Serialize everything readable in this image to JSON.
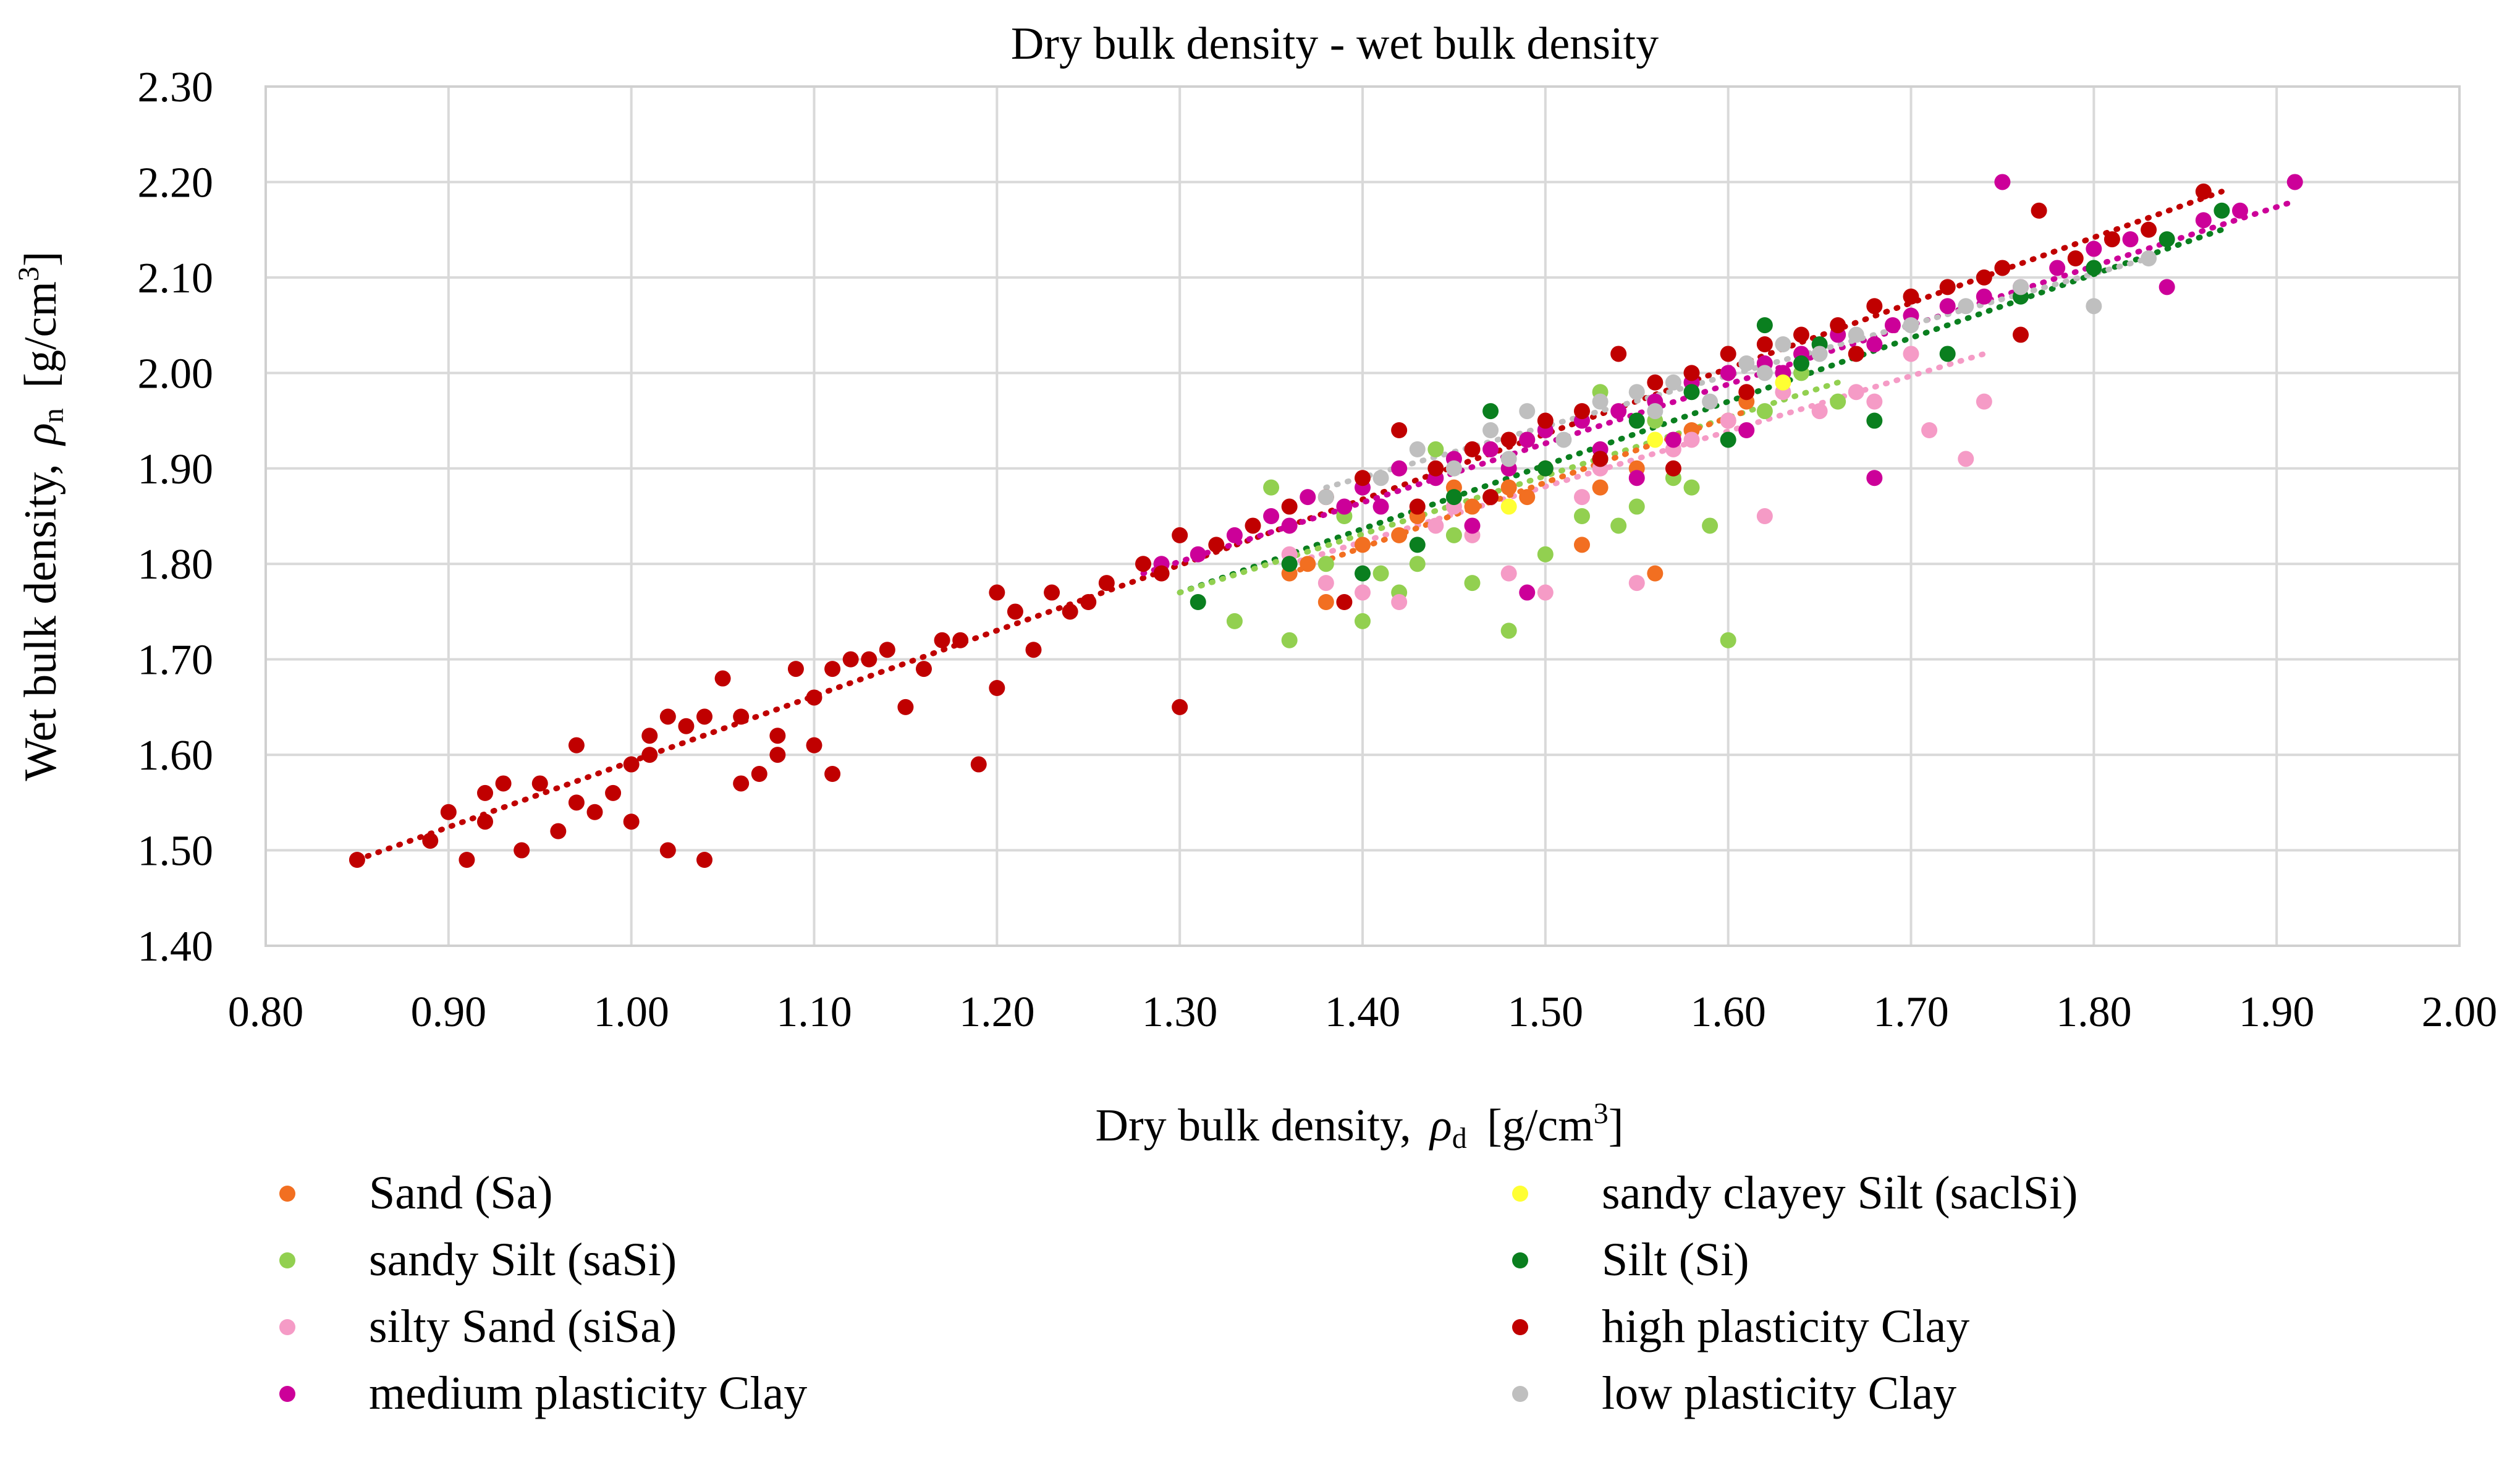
{
  "chart_data": {
    "type": "scatter",
    "title": "Dry bulk density - wet bulk density",
    "xlabel_prefix": "Dry bulk density,",
    "xlabel_symbol": "ρ",
    "xlabel_subscript": "d",
    "xlabel_unit_open": "[g/cm",
    "xlabel_unit_sup": "3",
    "xlabel_unit_close": "]",
    "ylabel_prefix": "Wet bulk density,",
    "ylabel_symbol": "ρ",
    "ylabel_subscript": "n",
    "ylabel_unit_open": "[g/cm",
    "ylabel_unit_sup": "3",
    "ylabel_unit_close": "]",
    "xlim": [
      0.8,
      2.0
    ],
    "ylim": [
      1.4,
      2.3
    ],
    "xticks": [
      "0.80",
      "0.90",
      "1.00",
      "1.10",
      "1.20",
      "1.30",
      "1.40",
      "1.50",
      "1.60",
      "1.70",
      "1.80",
      "1.90",
      "2.00"
    ],
    "yticks": [
      "1.40",
      "1.50",
      "1.60",
      "1.70",
      "1.80",
      "1.90",
      "2.00",
      "2.10",
      "2.20",
      "2.30"
    ],
    "grid": true,
    "legend_position": "bottom",
    "series": [
      {
        "name": "Sand (Sa)",
        "color": "#f26f21",
        "points": [
          [
            1.36,
            1.79
          ],
          [
            1.38,
            1.76
          ],
          [
            1.4,
            1.82
          ],
          [
            1.43,
            1.85
          ],
          [
            1.45,
            1.88
          ],
          [
            1.48,
            1.88
          ],
          [
            1.49,
            1.87
          ],
          [
            1.5,
            1.9
          ],
          [
            1.52,
            1.82
          ],
          [
            1.55,
            1.9
          ],
          [
            1.56,
            1.79
          ],
          [
            1.58,
            1.94
          ],
          [
            1.6,
            1.95
          ],
          [
            1.37,
            1.8
          ],
          [
            1.42,
            1.83
          ],
          [
            1.46,
            1.86
          ],
          [
            1.53,
            1.88
          ],
          [
            1.61,
            1.97
          ]
        ]
      },
      {
        "name": "sandy Silt (saSi)",
        "color": "#92d050",
        "points": [
          [
            1.33,
            1.74
          ],
          [
            1.36,
            1.72
          ],
          [
            1.38,
            1.8
          ],
          [
            1.4,
            1.74
          ],
          [
            1.42,
            1.77
          ],
          [
            1.43,
            1.8
          ],
          [
            1.45,
            1.83
          ],
          [
            1.46,
            1.78
          ],
          [
            1.47,
            1.87
          ],
          [
            1.48,
            1.73
          ],
          [
            1.5,
            1.81
          ],
          [
            1.52,
            1.85
          ],
          [
            1.54,
            1.84
          ],
          [
            1.55,
            1.86
          ],
          [
            1.56,
            1.95
          ],
          [
            1.57,
            1.89
          ],
          [
            1.59,
            1.84
          ],
          [
            1.6,
            1.72
          ],
          [
            1.62,
            1.96
          ],
          [
            1.64,
            2.0
          ],
          [
            1.66,
            1.97
          ],
          [
            1.44,
            1.92
          ],
          [
            1.49,
            1.93
          ],
          [
            1.53,
            1.98
          ],
          [
            1.58,
            1.88
          ],
          [
            1.41,
            1.79
          ],
          [
            1.35,
            1.88
          ],
          [
            1.39,
            1.85
          ]
        ]
      },
      {
        "name": "silty Sand (siSa)",
        "color": "#f59bc6",
        "points": [
          [
            1.36,
            1.81
          ],
          [
            1.38,
            1.78
          ],
          [
            1.4,
            1.77
          ],
          [
            1.42,
            1.76
          ],
          [
            1.44,
            1.84
          ],
          [
            1.46,
            1.83
          ],
          [
            1.48,
            1.79
          ],
          [
            1.5,
            1.77
          ],
          [
            1.52,
            1.87
          ],
          [
            1.55,
            1.78
          ],
          [
            1.57,
            1.92
          ],
          [
            1.62,
            1.85
          ],
          [
            1.65,
            1.96
          ],
          [
            1.67,
            1.98
          ],
          [
            1.68,
            1.97
          ],
          [
            1.71,
            1.94
          ],
          [
            1.73,
            1.91
          ],
          [
            1.74,
            1.97
          ],
          [
            1.7,
            2.02
          ],
          [
            1.6,
            1.95
          ],
          [
            1.45,
            1.86
          ],
          [
            1.53,
            1.9
          ],
          [
            1.58,
            1.93
          ],
          [
            1.63,
            1.98
          ]
        ]
      },
      {
        "name": "medium plasticity Clay",
        "color": "#cc0099",
        "points": [
          [
            1.29,
            1.8
          ],
          [
            1.31,
            1.81
          ],
          [
            1.33,
            1.83
          ],
          [
            1.35,
            1.85
          ],
          [
            1.37,
            1.87
          ],
          [
            1.39,
            1.86
          ],
          [
            1.4,
            1.88
          ],
          [
            1.42,
            1.9
          ],
          [
            1.44,
            1.89
          ],
          [
            1.45,
            1.91
          ],
          [
            1.47,
            1.92
          ],
          [
            1.49,
            1.93
          ],
          [
            1.5,
            1.94
          ],
          [
            1.52,
            1.95
          ],
          [
            1.54,
            1.96
          ],
          [
            1.56,
            1.97
          ],
          [
            1.58,
            1.99
          ],
          [
            1.6,
            2.0
          ],
          [
            1.62,
            2.01
          ],
          [
            1.64,
            2.02
          ],
          [
            1.66,
            2.04
          ],
          [
            1.68,
            2.03
          ],
          [
            1.7,
            2.06
          ],
          [
            1.72,
            2.07
          ],
          [
            1.74,
            2.08
          ],
          [
            1.75,
            2.2
          ],
          [
            1.78,
            2.11
          ],
          [
            1.8,
            2.13
          ],
          [
            1.82,
            2.14
          ],
          [
            1.84,
            2.09
          ],
          [
            1.86,
            2.16
          ],
          [
            1.88,
            2.17
          ],
          [
            1.91,
            2.2
          ],
          [
            1.68,
            1.89
          ],
          [
            1.49,
            1.77
          ],
          [
            1.55,
            1.89
          ],
          [
            1.61,
            1.94
          ],
          [
            1.46,
            1.84
          ],
          [
            1.41,
            1.86
          ],
          [
            1.57,
            1.93
          ],
          [
            1.53,
            1.92
          ],
          [
            1.36,
            1.84
          ],
          [
            1.48,
            1.9
          ],
          [
            1.63,
            2.0
          ],
          [
            1.69,
            2.05
          ],
          [
            1.76,
            2.09
          ]
        ]
      },
      {
        "name": "sandy clayey Silt (saclSi)",
        "color": "#ffff33",
        "points": [
          [
            1.48,
            1.86
          ],
          [
            1.56,
            1.93
          ],
          [
            1.63,
            1.99
          ]
        ]
      },
      {
        "name": "Silt (Si)",
        "color": "#0a7f1f",
        "points": [
          [
            1.31,
            1.76
          ],
          [
            1.36,
            1.8
          ],
          [
            1.4,
            1.79
          ],
          [
            1.43,
            1.82
          ],
          [
            1.45,
            1.87
          ],
          [
            1.47,
            1.96
          ],
          [
            1.5,
            1.9
          ],
          [
            1.53,
            1.91
          ],
          [
            1.55,
            1.95
          ],
          [
            1.58,
            1.98
          ],
          [
            1.6,
            1.93
          ],
          [
            1.62,
            2.05
          ],
          [
            1.65,
            2.03
          ],
          [
            1.68,
            1.95
          ],
          [
            1.72,
            2.02
          ],
          [
            1.76,
            2.08
          ],
          [
            1.8,
            2.11
          ],
          [
            1.84,
            2.14
          ],
          [
            1.87,
            2.17
          ],
          [
            1.64,
            2.01
          ]
        ]
      },
      {
        "name": "high plasticity Clay",
        "color": "#c00000",
        "points": [
          [
            0.85,
            1.49
          ],
          [
            0.89,
            1.51
          ],
          [
            0.9,
            1.54
          ],
          [
            0.91,
            1.49
          ],
          [
            0.92,
            1.56
          ],
          [
            0.92,
            1.53
          ],
          [
            0.93,
            1.57
          ],
          [
            0.94,
            1.5
          ],
          [
            0.95,
            1.57
          ],
          [
            0.96,
            1.52
          ],
          [
            0.97,
            1.55
          ],
          [
            0.97,
            1.61
          ],
          [
            0.98,
            1.54
          ],
          [
            0.99,
            1.56
          ],
          [
            1.0,
            1.53
          ],
          [
            1.0,
            1.59
          ],
          [
            1.01,
            1.62
          ],
          [
            1.01,
            1.6
          ],
          [
            1.02,
            1.64
          ],
          [
            1.02,
            1.5
          ],
          [
            1.03,
            1.63
          ],
          [
            1.04,
            1.49
          ],
          [
            1.04,
            1.64
          ],
          [
            1.05,
            1.68
          ],
          [
            1.06,
            1.64
          ],
          [
            1.06,
            1.57
          ],
          [
            1.07,
            1.58
          ],
          [
            1.08,
            1.62
          ],
          [
            1.08,
            1.6
          ],
          [
            1.09,
            1.69
          ],
          [
            1.1,
            1.66
          ],
          [
            1.1,
            1.61
          ],
          [
            1.11,
            1.58
          ],
          [
            1.11,
            1.69
          ],
          [
            1.12,
            1.7
          ],
          [
            1.13,
            1.7
          ],
          [
            1.14,
            1.71
          ],
          [
            1.15,
            1.65
          ],
          [
            1.16,
            1.69
          ],
          [
            1.17,
            1.72
          ],
          [
            1.18,
            1.72
          ],
          [
            1.19,
            1.59
          ],
          [
            1.2,
            1.67
          ],
          [
            1.2,
            1.77
          ],
          [
            1.21,
            1.75
          ],
          [
            1.22,
            1.71
          ],
          [
            1.23,
            1.77
          ],
          [
            1.24,
            1.75
          ],
          [
            1.25,
            1.76
          ],
          [
            1.26,
            1.78
          ],
          [
            1.28,
            1.8
          ],
          [
            1.29,
            1.79
          ],
          [
            1.3,
            1.83
          ],
          [
            1.3,
            1.65
          ],
          [
            1.32,
            1.82
          ],
          [
            1.34,
            1.84
          ],
          [
            1.36,
            1.86
          ],
          [
            1.38,
            1.87
          ],
          [
            1.39,
            1.76
          ],
          [
            1.4,
            1.89
          ],
          [
            1.42,
            1.94
          ],
          [
            1.44,
            1.9
          ],
          [
            1.46,
            1.92
          ],
          [
            1.48,
            1.93
          ],
          [
            1.5,
            1.95
          ],
          [
            1.52,
            1.96
          ],
          [
            1.54,
            2.02
          ],
          [
            1.56,
            1.99
          ],
          [
            1.58,
            2.0
          ],
          [
            1.6,
            2.02
          ],
          [
            1.62,
            2.03
          ],
          [
            1.64,
            2.04
          ],
          [
            1.66,
            2.05
          ],
          [
            1.68,
            2.07
          ],
          [
            1.7,
            2.08
          ],
          [
            1.72,
            2.09
          ],
          [
            1.74,
            2.1
          ],
          [
            1.76,
            2.04
          ],
          [
            1.77,
            2.17
          ],
          [
            1.79,
            2.12
          ],
          [
            1.81,
            2.14
          ],
          [
            1.83,
            2.15
          ],
          [
            1.86,
            2.19
          ],
          [
            1.53,
            1.91
          ],
          [
            1.57,
            1.9
          ],
          [
            1.47,
            1.87
          ],
          [
            1.43,
            1.86
          ],
          [
            1.61,
            1.98
          ],
          [
            1.67,
            2.02
          ],
          [
            1.75,
            2.11
          ]
        ]
      },
      {
        "name": "low plasticity Clay",
        "color": "#bfbfbf",
        "points": [
          [
            1.38,
            1.87
          ],
          [
            1.41,
            1.89
          ],
          [
            1.43,
            1.92
          ],
          [
            1.45,
            1.9
          ],
          [
            1.47,
            1.94
          ],
          [
            1.49,
            1.96
          ],
          [
            1.51,
            1.93
          ],
          [
            1.53,
            1.97
          ],
          [
            1.55,
            1.98
          ],
          [
            1.57,
            1.99
          ],
          [
            1.59,
            1.97
          ],
          [
            1.61,
            2.01
          ],
          [
            1.63,
            2.03
          ],
          [
            1.65,
            2.02
          ],
          [
            1.67,
            2.04
          ],
          [
            1.7,
            2.05
          ],
          [
            1.73,
            2.07
          ],
          [
            1.76,
            2.09
          ],
          [
            1.8,
            2.07
          ],
          [
            1.83,
            2.12
          ],
          [
            1.48,
            1.91
          ],
          [
            1.56,
            1.96
          ],
          [
            1.62,
            2.0
          ]
        ]
      }
    ],
    "trendlines": [
      {
        "series": "high plasticity Clay",
        "color": "#c00000",
        "x": [
          0.85,
          1.87
        ],
        "y": [
          1.49,
          2.19
        ]
      },
      {
        "series": "medium plasticity Clay",
        "color": "#cc0099",
        "x": [
          1.28,
          1.91
        ],
        "y": [
          1.79,
          2.18
        ]
      },
      {
        "series": "Silt (Si)",
        "color": "#0a7f1f",
        "x": [
          1.3,
          1.87
        ],
        "y": [
          1.77,
          2.15
        ]
      },
      {
        "series": "sandy Silt (saSi)",
        "color": "#92d050",
        "x": [
          1.3,
          1.66
        ],
        "y": [
          1.77,
          1.99
        ]
      },
      {
        "series": "silty Sand (siSa)",
        "color": "#f59bc6",
        "x": [
          1.36,
          1.74
        ],
        "y": [
          1.8,
          2.02
        ]
      },
      {
        "series": "low plasticity Clay",
        "color": "#bfbfbf",
        "x": [
          1.38,
          1.83
        ],
        "y": [
          1.88,
          2.12
        ]
      },
      {
        "series": "Sand (Sa)",
        "color": "#f26f21",
        "x": [
          1.36,
          1.61
        ],
        "y": [
          1.79,
          1.96
        ]
      }
    ],
    "legend_order": [
      "Sand (Sa)",
      "sandy clayey Silt (saclSi)",
      "sandy Silt (saSi)",
      "Silt (Si)",
      "silty Sand (siSa)",
      "high plasticity Clay",
      "medium plasticity Clay",
      "low plasticity Clay"
    ]
  }
}
